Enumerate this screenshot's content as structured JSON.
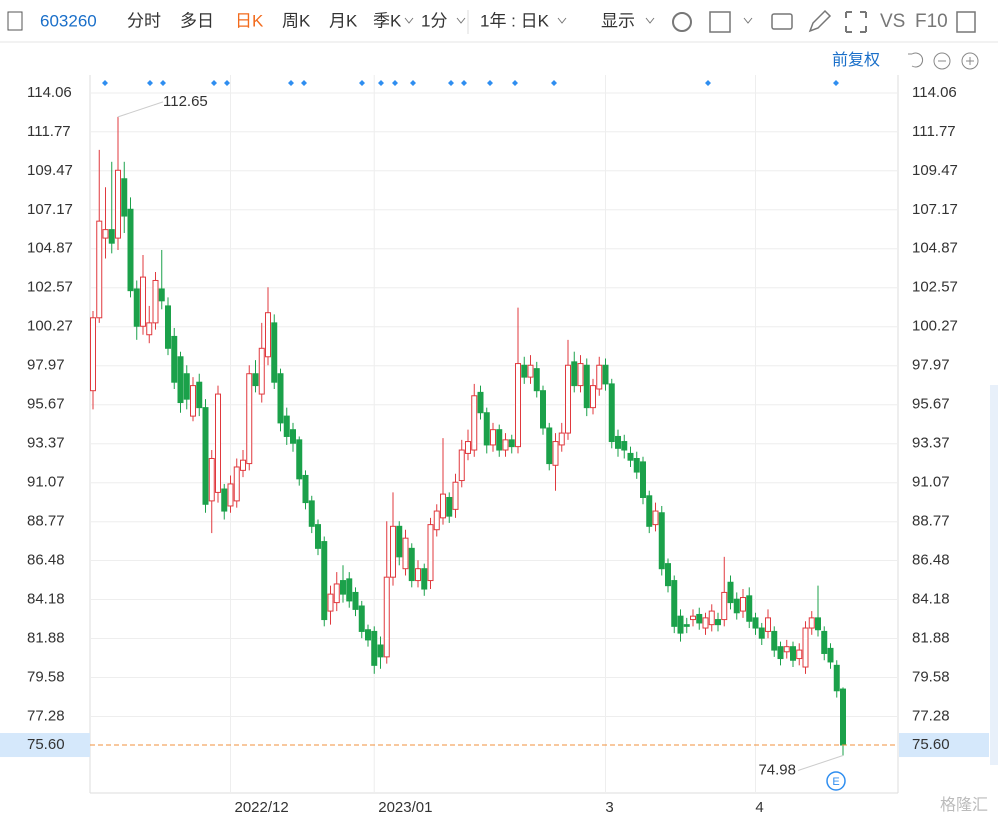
{
  "toolbar": {
    "code": "603260",
    "tabs": [
      "分时",
      "多日",
      "日K",
      "周K",
      "月K",
      "季K",
      "1分",
      "1年 : 日K"
    ],
    "display": "显示",
    "vs": "VS",
    "f10": "F10"
  },
  "chart_data": {
    "type": "candlestick",
    "adjust": "前复权",
    "watermark": "格隆汇",
    "up_color": "#e0393e",
    "down_color": "#1ba14a",
    "grid": true,
    "ylim": [
      72.77,
      115.12
    ],
    "yticks": [
      114.06,
      111.77,
      109.47,
      107.17,
      104.87,
      102.57,
      100.27,
      97.97,
      95.67,
      93.37,
      91.07,
      88.77,
      86.48,
      84.18,
      81.88,
      79.58,
      77.28
    ],
    "last_price": {
      "value": 75.6,
      "label": "75.60"
    },
    "categories": [
      null,
      null,
      null,
      null,
      null,
      null,
      null,
      null,
      null,
      null,
      null,
      null,
      null,
      null,
      null,
      null,
      null,
      null,
      null,
      null,
      null,
      null,
      "2022/12",
      null,
      null,
      null,
      null,
      null,
      null,
      null,
      null,
      null,
      null,
      null,
      null,
      null,
      null,
      null,
      null,
      null,
      null,
      null,
      null,
      null,
      null,
      "2023/01",
      null,
      null,
      null,
      null,
      null,
      null,
      null,
      null,
      null,
      null,
      null,
      null,
      null,
      null,
      null,
      null,
      null,
      null,
      null,
      null,
      null,
      null,
      null,
      null,
      null,
      null,
      null,
      null,
      null,
      null,
      null,
      null,
      null,
      null,
      null,
      null,
      "3",
      null,
      null,
      null,
      null,
      null,
      null,
      null,
      null,
      null,
      null,
      null,
      null,
      null,
      null,
      null,
      null,
      null,
      null,
      null,
      null,
      null,
      null,
      null,
      "4",
      null,
      null,
      null,
      null,
      null,
      null,
      null,
      null,
      null,
      null,
      null,
      null,
      null,
      null
    ],
    "open": [
      96.5,
      100.8,
      105.5,
      106.0,
      105.5,
      109.0,
      107.2,
      102.5,
      100.3,
      99.8,
      100.5,
      102.5,
      101.5,
      99.7,
      98.5,
      97.5,
      95.0,
      97.0,
      95.5,
      90.0,
      90.5,
      90.7,
      89.7,
      90.0,
      91.8,
      92.2,
      97.5,
      96.3,
      98.5,
      100.5,
      97.5,
      95.0,
      94.2,
      93.6,
      91.5,
      90.0,
      88.6,
      87.6,
      83.5,
      84.0,
      85.3,
      85.4,
      84.6,
      83.8,
      82.4,
      82.3,
      81.5,
      80.8,
      85.5,
      88.5,
      86.0,
      87.2,
      85.3,
      86.0,
      85.3,
      88.3,
      89.0,
      90.2,
      89.5,
      91.2,
      92.8,
      93.0,
      96.4,
      95.2,
      93.3,
      94.2,
      93.0,
      93.6,
      93.2,
      98.0,
      97.3,
      97.8,
      96.5,
      94.3,
      92.1,
      93.3,
      94.0,
      98.2,
      96.8,
      98.0,
      95.5,
      96.6,
      98.0,
      96.9,
      93.8,
      93.5,
      92.8,
      92.5,
      92.3,
      90.3,
      88.6,
      89.3,
      86.3,
      85.3,
      83.2,
      82.7,
      83.0,
      83.3,
      82.5,
      82.7,
      83.0,
      83.0,
      85.2,
      84.2,
      83.5,
      84.4,
      83.1,
      82.5,
      82.3,
      82.3,
      81.4,
      81.1,
      81.4,
      80.7,
      80.2,
      82.5,
      83.1,
      82.3,
      81.3,
      80.3,
      78.9
    ],
    "high": [
      101.2,
      110.7,
      108.5,
      110.0,
      112.65,
      110.0,
      107.9,
      103.0,
      104.5,
      101.5,
      103.5,
      104.8,
      102.0,
      100.2,
      98.8,
      98.0,
      97.3,
      97.5,
      96.0,
      93.0,
      96.8,
      91.0,
      91.5,
      92.5,
      93.0,
      98.0,
      98.3,
      100.5,
      102.6,
      101.0,
      97.8,
      95.5,
      94.6,
      93.8,
      91.8,
      90.3,
      88.9,
      87.9,
      85.0,
      85.8,
      86.2,
      85.8,
      84.9,
      84.1,
      82.7,
      82.6,
      82.0,
      88.8,
      90.5,
      88.8,
      88.3,
      87.5,
      86.5,
      86.3,
      89.0,
      89.8,
      93.7,
      90.5,
      91.6,
      93.6,
      94.2,
      96.9,
      96.8,
      95.5,
      94.6,
      94.5,
      94.0,
      93.9,
      101.4,
      98.5,
      98.6,
      98.2,
      96.8,
      94.6,
      94.0,
      94.6,
      99.5,
      98.8,
      98.6,
      98.4,
      97.2,
      98.5,
      98.4,
      97.2,
      94.2,
      93.9,
      93.2,
      92.9,
      92.6,
      90.6,
      89.9,
      89.7,
      86.6,
      85.6,
      83.6,
      83.1,
      83.6,
      83.7,
      83.4,
      83.9,
      83.4,
      86.7,
      85.6,
      84.6,
      84.8,
      84.9,
      83.4,
      82.8,
      83.6,
      82.6,
      81.7,
      81.8,
      81.7,
      81.6,
      82.9,
      83.5,
      85.0,
      82.6,
      81.6,
      80.6,
      79.0
    ],
    "low": [
      95.4,
      100.5,
      104.3,
      104.6,
      104.8,
      105.8,
      102.0,
      99.5,
      99.8,
      99.3,
      100.1,
      101.3,
      98.6,
      96.6,
      95.2,
      95.4,
      94.7,
      95.0,
      89.3,
      88.1,
      89.9,
      88.9,
      89.3,
      89.6,
      91.4,
      91.8,
      96.4,
      95.8,
      98.0,
      96.6,
      94.1,
      93.3,
      92.9,
      90.9,
      89.5,
      88.1,
      86.8,
      82.6,
      82.7,
      83.5,
      84.0,
      83.7,
      83.2,
      81.9,
      81.4,
      79.8,
      80.1,
      80.4,
      85.0,
      86.2,
      85.6,
      84.9,
      84.9,
      84.4,
      84.8,
      87.9,
      88.6,
      88.7,
      89.0,
      90.8,
      92.4,
      92.6,
      94.8,
      92.8,
      92.9,
      92.6,
      92.6,
      92.8,
      92.8,
      96.9,
      96.9,
      96.1,
      93.9,
      91.8,
      90.6,
      92.9,
      93.6,
      96.4,
      96.4,
      95.0,
      95.1,
      96.2,
      96.5,
      93.1,
      92.6,
      92.5,
      92.0,
      91.3,
      89.8,
      88.1,
      88.2,
      85.6,
      84.6,
      82.2,
      81.7,
      82.2,
      82.6,
      82.4,
      82.1,
      82.3,
      82.3,
      82.6,
      83.6,
      83.0,
      83.1,
      82.5,
      82.1,
      81.5,
      81.9,
      80.8,
      80.3,
      80.7,
      80.2,
      80.3,
      79.8,
      82.1,
      82.0,
      80.6,
      80.1,
      78.4,
      74.98
    ],
    "close": [
      100.8,
      106.5,
      106.0,
      105.2,
      109.5,
      106.8,
      102.4,
      100.3,
      103.2,
      100.5,
      103.0,
      101.8,
      99.0,
      97.0,
      95.8,
      96.0,
      96.8,
      95.5,
      89.8,
      92.5,
      96.3,
      89.4,
      91.0,
      92.0,
      92.4,
      97.5,
      96.8,
      99.0,
      101.1,
      97.0,
      94.6,
      93.8,
      93.4,
      91.3,
      89.9,
      88.5,
      87.2,
      83.0,
      84.5,
      85.1,
      84.5,
      84.1,
      83.6,
      82.3,
      81.8,
      80.3,
      80.8,
      85.5,
      88.5,
      86.7,
      87.8,
      85.3,
      86.0,
      84.8,
      88.6,
      89.4,
      90.4,
      89.1,
      91.1,
      93.0,
      93.5,
      96.2,
      95.2,
      93.3,
      94.2,
      93.0,
      93.6,
      93.2,
      98.1,
      97.3,
      98.0,
      96.5,
      94.3,
      92.2,
      93.5,
      94.0,
      98.0,
      96.8,
      98.1,
      95.5,
      96.8,
      98.0,
      96.9,
      93.5,
      93.1,
      93.0,
      92.4,
      91.7,
      90.2,
      88.5,
      89.4,
      86.0,
      85.0,
      82.6,
      82.2,
      82.6,
      83.2,
      82.8,
      83.1,
      83.5,
      82.7,
      84.6,
      84.0,
      83.4,
      84.3,
      82.9,
      82.5,
      81.9,
      83.1,
      81.2,
      80.7,
      81.4,
      80.6,
      81.2,
      82.5,
      83.1,
      82.4,
      81.0,
      80.5,
      78.8,
      75.6
    ]
  }
}
